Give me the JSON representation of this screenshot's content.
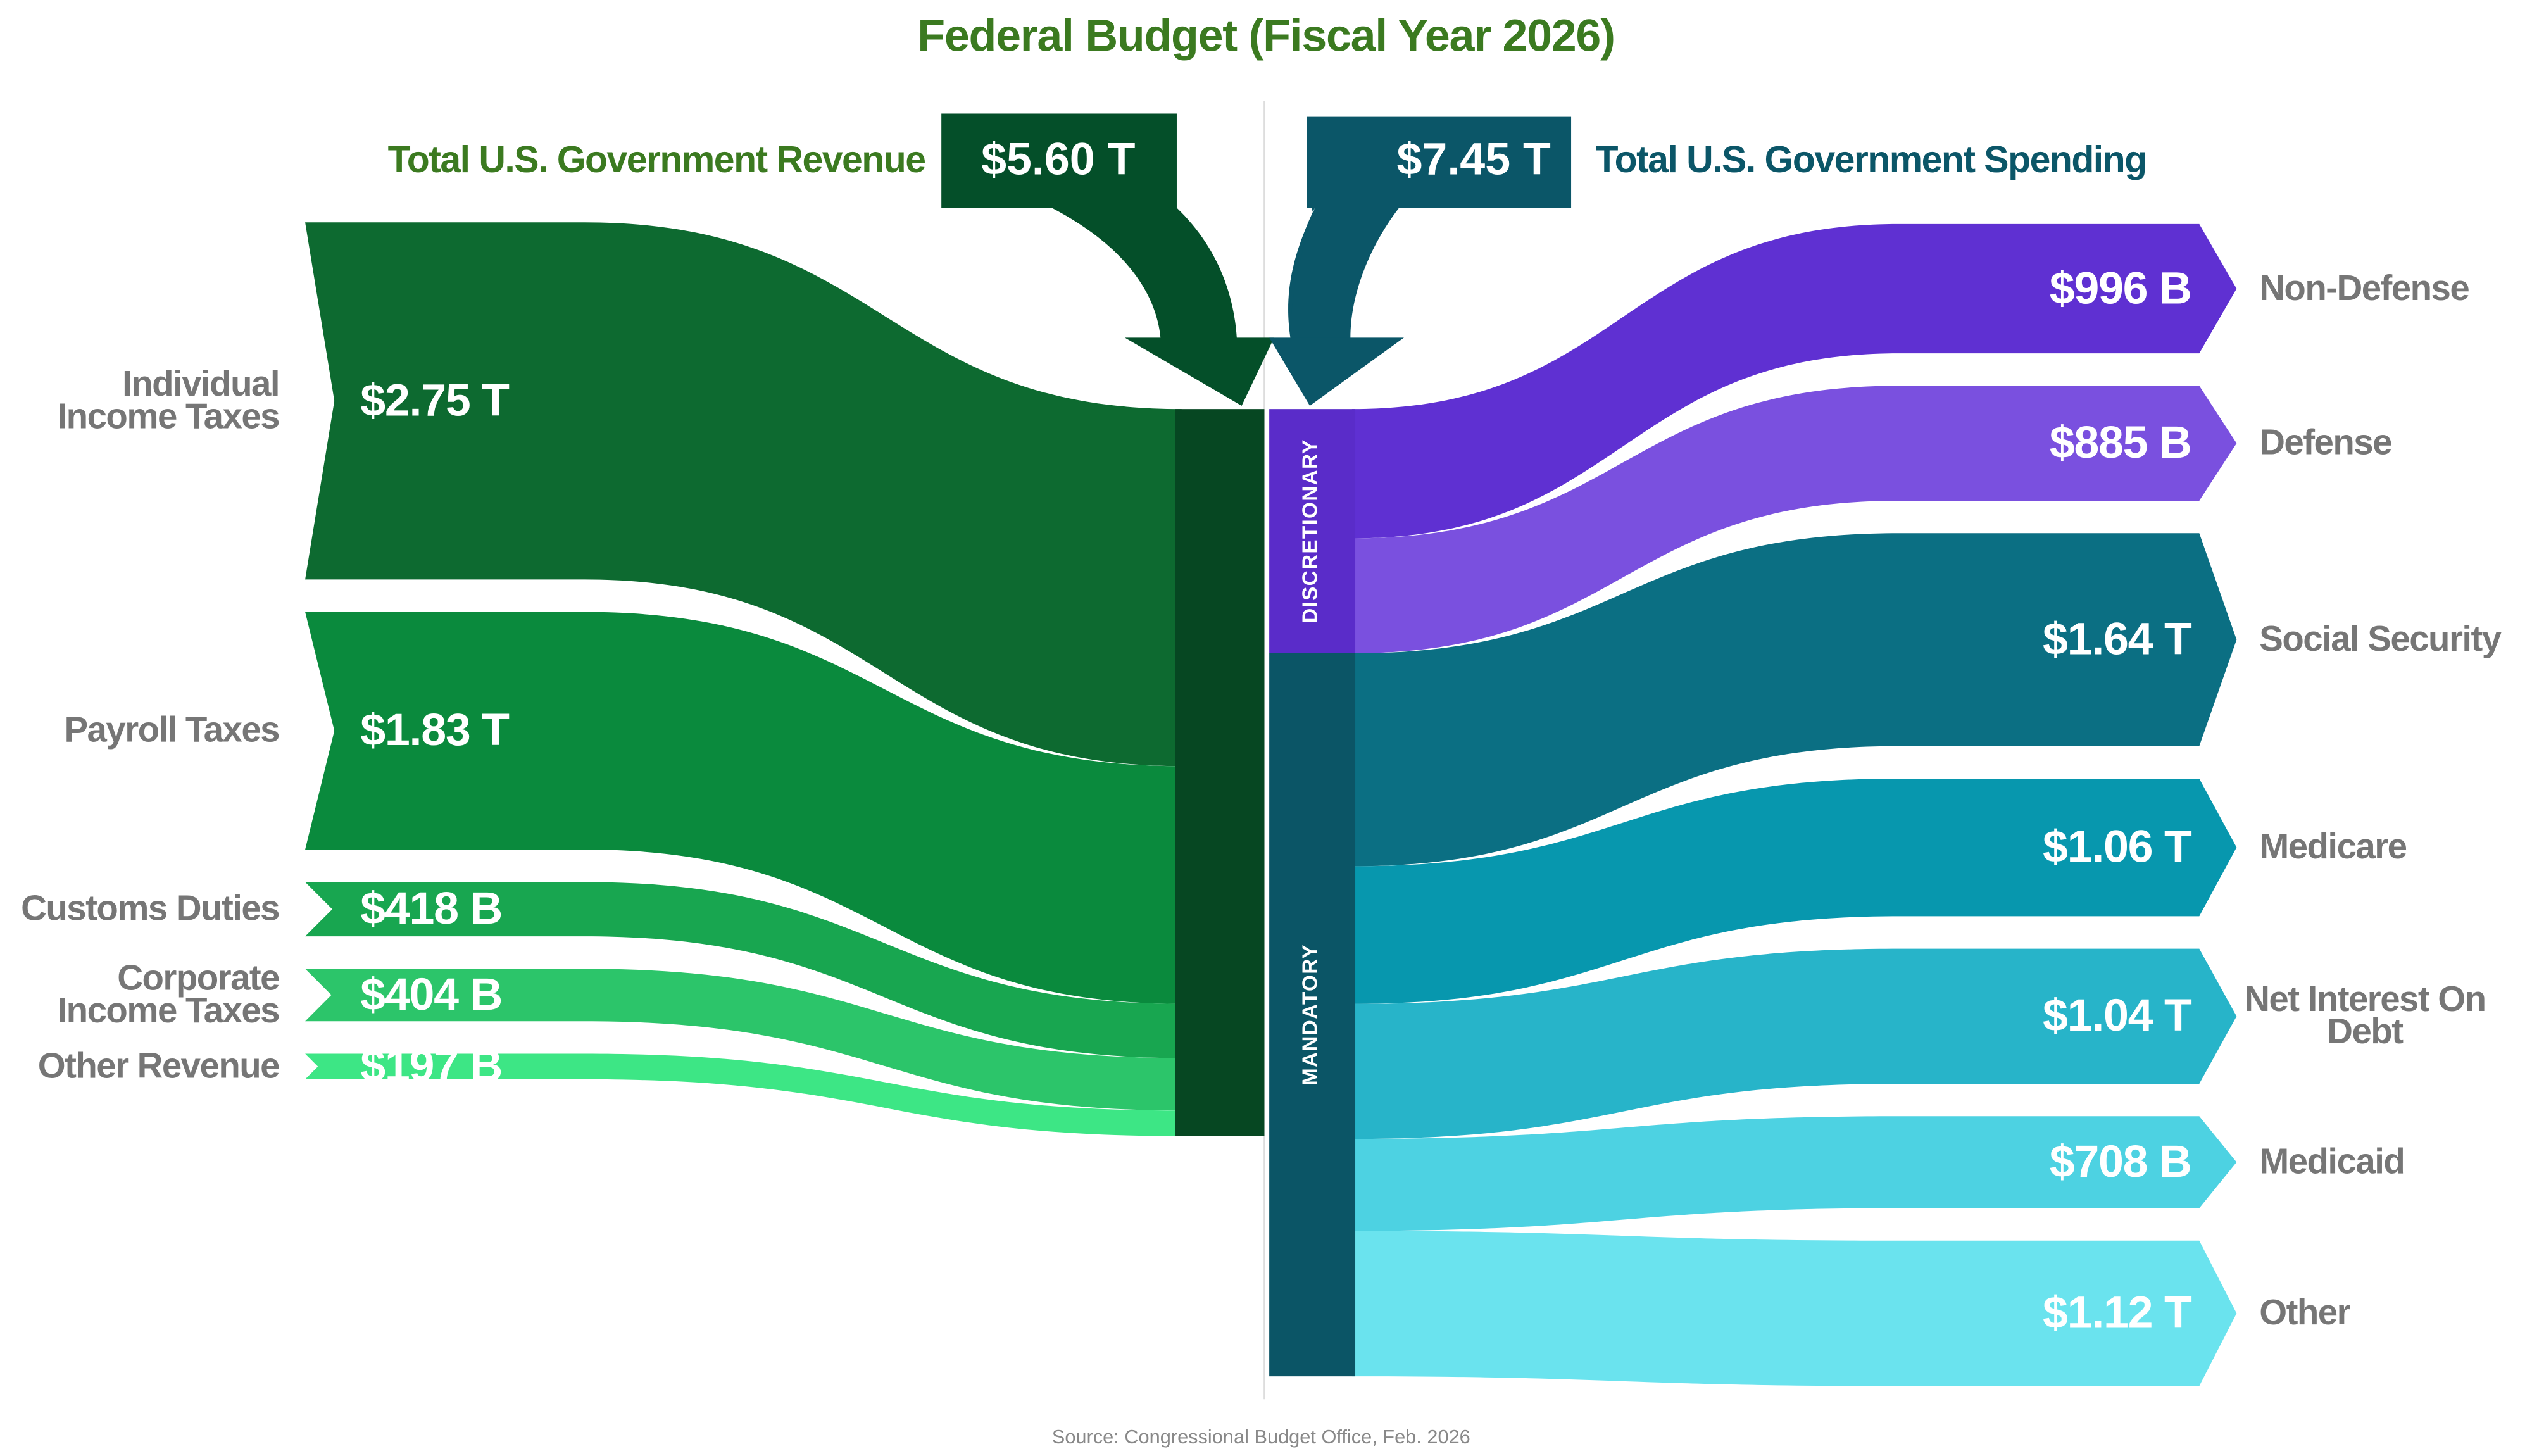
{
  "chart_data": {
    "type": "sankey",
    "title": "Federal Budget (Fiscal Year 2026)",
    "source": "Source: Congressional Budget Office, Feb. 2026",
    "revenue": {
      "name": "Total U.S. Government Revenue",
      "value": 5600000000000,
      "value_label": "$5.60 T",
      "color": "#044f29",
      "node_color": "#064722",
      "text_color": "#3b7a20"
    },
    "spending": {
      "name": "Total U.S. Government Spending",
      "value": 7450000000000,
      "value_label": "$7.45 T",
      "color": "#0b5668",
      "text_color": "#0b5668"
    },
    "sources": {
      "categories": [
        "Individual Income Taxes",
        "Payroll Taxes",
        "Customs Duties",
        "Corporate Income Taxes",
        "Other Revenue"
      ],
      "values": [
        2750000000000,
        1830000000000,
        418000000000,
        404000000000,
        197000000000
      ],
      "value_labels": [
        "$2.75 T",
        "$1.83 T",
        "$418 B",
        "$404 B",
        "$197 B"
      ],
      "colors": [
        "#0d6a30",
        "#0a8a3d",
        "#18a650",
        "#2cc56a",
        "#3de685"
      ]
    },
    "groups": [
      {
        "name": "DISCRETIONARY",
        "color": "#5a2cc9",
        "categories": [
          "Non-Defense",
          "Defense"
        ],
        "values": [
          996000000000,
          885000000000
        ],
        "value_labels": [
          "$996 B",
          "$885 B"
        ],
        "colors": [
          "#5f30d2",
          "#7a50df"
        ]
      },
      {
        "name": "MANDATORY",
        "color": "#0b5566",
        "categories": [
          "Social Security",
          "Medicare",
          "Net Interest On Debt",
          "Medicaid",
          "Other"
        ],
        "values": [
          1640000000000,
          1060000000000,
          1040000000000,
          708000000000,
          1120000000000
        ],
        "value_labels": [
          "$1.64 T",
          "$1.06 T",
          "$1.04 T",
          "$708 B",
          "$1.12 T"
        ],
        "colors": [
          "#0b6f83",
          "#0797ae",
          "#27b4c9",
          "#4dd2e2",
          "#6ae3ee"
        ]
      }
    ]
  }
}
